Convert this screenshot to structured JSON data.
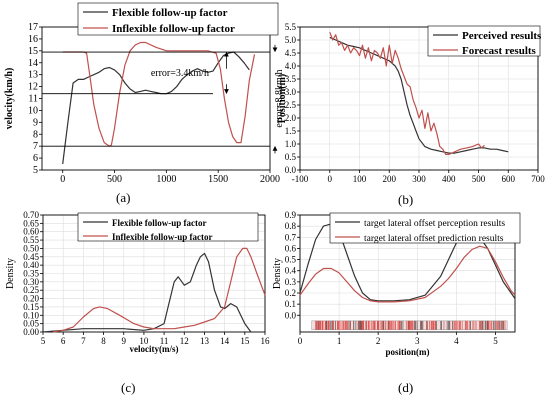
{
  "chart_data": [
    {
      "panel": "(a)",
      "type": "line",
      "ylabel": "velocity(km/h)",
      "xlim": [
        -200,
        2000
      ],
      "ylim": [
        5,
        17
      ],
      "xticks": [
        0,
        500,
        1000,
        1500,
        2000
      ],
      "yticks": [
        5,
        6,
        7,
        8,
        9,
        10,
        11,
        12,
        13,
        14,
        15,
        16,
        17
      ],
      "legend": "top",
      "series": [
        {
          "name": "Flexible follow-up factor",
          "color": "#333333",
          "x": [
            0,
            50,
            100,
            150,
            200,
            250,
            300,
            350,
            400,
            450,
            500,
            550,
            600,
            650,
            700,
            750,
            800,
            850,
            900,
            950,
            1000,
            1050,
            1100,
            1150,
            1200,
            1250,
            1300,
            1350,
            1400,
            1450,
            1500,
            1550,
            1600,
            1650,
            1700,
            1750,
            1800
          ],
          "y": [
            5.5,
            9,
            12.3,
            12.6,
            12.6,
            12.8,
            13.0,
            13.2,
            13.5,
            13.6,
            13.4,
            13.0,
            12.3,
            11.8,
            11.5,
            11.6,
            11.7,
            11.6,
            11.5,
            11.4,
            11.4,
            11.6,
            12.0,
            12.6,
            13.0,
            13.3,
            13.5,
            13.3,
            13.2,
            13.3,
            14.0,
            14.6,
            14.8,
            14.9,
            14.5,
            14.0,
            13.4
          ]
        },
        {
          "name": "Inflexible follow-up factor",
          "color": "#c0504d",
          "x": [
            0,
            100,
            200,
            230,
            260,
            300,
            350,
            400,
            450,
            470,
            500,
            550,
            600,
            650,
            700,
            750,
            800,
            900,
            1000,
            1100,
            1200,
            1300,
            1400,
            1480,
            1520,
            1560,
            1600,
            1640,
            1680,
            1720,
            1760,
            1800,
            1850
          ],
          "y": [
            14.9,
            14.9,
            14.9,
            14.8,
            13.0,
            10.5,
            8.5,
            7.3,
            7.0,
            7.1,
            8.5,
            11.5,
            13.8,
            15.0,
            15.5,
            15.7,
            15.7,
            15.3,
            15.0,
            15.0,
            15.0,
            15.0,
            15.0,
            14.8,
            13.5,
            11.0,
            9.0,
            7.8,
            7.3,
            7.3,
            9.5,
            12.5,
            14.7
          ]
        }
      ],
      "annotations": [
        "error=3.4km/h",
        "error=8.8km/h"
      ]
    },
    {
      "panel": "(b)",
      "type": "line",
      "ylabel": "Position(m)",
      "xlim": [
        -100,
        700
      ],
      "ylim": [
        0,
        5.5
      ],
      "xticks": [
        -100,
        0,
        100,
        200,
        300,
        400,
        500,
        600,
        700
      ],
      "yticks": [
        0.0,
        0.5,
        1.0,
        1.5,
        2.0,
        2.5,
        3.0,
        3.5,
        4.0,
        4.5,
        5.0,
        5.5
      ],
      "legend": "top-right",
      "series": [
        {
          "name": "Perceived results",
          "color": "#333333",
          "x": [
            0,
            10,
            20,
            40,
            60,
            80,
            100,
            120,
            140,
            160,
            180,
            200,
            220,
            230,
            240,
            250,
            260,
            270,
            280,
            290,
            300,
            320,
            340,
            360,
            380,
            400,
            420,
            440,
            460,
            480,
            500,
            520,
            540,
            560,
            580,
            600
          ],
          "y": [
            5.1,
            5.05,
            5.0,
            4.9,
            4.8,
            4.75,
            4.7,
            4.6,
            4.5,
            4.4,
            4.3,
            4.2,
            4.0,
            3.8,
            3.5,
            3.0,
            2.5,
            2.1,
            1.8,
            1.5,
            1.2,
            0.9,
            0.8,
            0.75,
            0.7,
            0.65,
            0.65,
            0.7,
            0.75,
            0.8,
            0.85,
            0.85,
            0.8,
            0.8,
            0.75,
            0.7
          ]
        },
        {
          "name": "Forecast results",
          "color": "#c0504d",
          "x": [
            0,
            10,
            20,
            30,
            40,
            50,
            60,
            70,
            80,
            90,
            100,
            110,
            120,
            130,
            140,
            150,
            160,
            170,
            180,
            190,
            200,
            210,
            220,
            230,
            240,
            250,
            260,
            270,
            280,
            290,
            300,
            310,
            320,
            330,
            340,
            350,
            360,
            370,
            380,
            390,
            400,
            420,
            440,
            460,
            480,
            500,
            510,
            520
          ],
          "y": [
            5.3,
            5.0,
            5.2,
            4.8,
            4.9,
            4.6,
            4.8,
            4.5,
            4.7,
            4.6,
            4.4,
            4.8,
            4.3,
            4.7,
            4.2,
            4.6,
            4.5,
            4.3,
            4.7,
            4.0,
            4.8,
            4.1,
            4.6,
            4.3,
            3.9,
            3.6,
            3.3,
            3.2,
            2.7,
            2.4,
            2.0,
            2.3,
            1.6,
            2.2,
            1.5,
            1.8,
            1.4,
            0.9,
            0.8,
            0.6,
            0.6,
            0.7,
            0.8,
            0.85,
            0.9,
            1.0,
            0.85,
            0.95
          ]
        }
      ]
    },
    {
      "panel": "(c)",
      "type": "line",
      "xlabel": "velocity(m/s)",
      "ylabel": "Density",
      "xlim": [
        5,
        16
      ],
      "ylim": [
        0,
        0.7
      ],
      "xticks": [
        5,
        6,
        7,
        8,
        9,
        10,
        11,
        12,
        13,
        14,
        15,
        16
      ],
      "yticks": [
        0.0,
        0.05,
        0.1,
        0.15,
        0.2,
        0.25,
        0.3,
        0.35,
        0.4,
        0.45,
        0.5,
        0.55,
        0.6,
        0.65,
        0.7
      ],
      "legend": "top",
      "series": [
        {
          "name": "Flexible follow-up factor",
          "color": "#333333",
          "x": [
            5,
            6,
            7,
            8,
            9,
            10,
            10.5,
            11,
            11.2,
            11.5,
            11.7,
            12.0,
            12.3,
            12.6,
            12.8,
            13.0,
            13.2,
            13.5,
            13.8,
            14.0,
            14.3,
            14.6,
            15.0,
            15.3
          ],
          "y": [
            0.0,
            0.01,
            0.02,
            0.02,
            0.02,
            0.01,
            0.02,
            0.05,
            0.15,
            0.3,
            0.33,
            0.28,
            0.3,
            0.4,
            0.45,
            0.47,
            0.42,
            0.25,
            0.15,
            0.14,
            0.17,
            0.15,
            0.05,
            0.0
          ]
        },
        {
          "name": "Inflexible follow-up factor",
          "color": "#c0504d",
          "x": [
            5.5,
            6,
            6.5,
            7,
            7.5,
            7.8,
            8.2,
            8.8,
            9.5,
            10,
            10.5,
            11,
            11.5,
            12,
            12.5,
            13,
            13.5,
            14,
            14.3,
            14.6,
            14.9,
            15.1,
            15.3,
            15.6,
            16
          ],
          "y": [
            0.0,
            0.01,
            0.03,
            0.09,
            0.14,
            0.15,
            0.14,
            0.1,
            0.05,
            0.03,
            0.02,
            0.02,
            0.02,
            0.03,
            0.04,
            0.06,
            0.08,
            0.15,
            0.3,
            0.45,
            0.5,
            0.5,
            0.45,
            0.35,
            0.22
          ]
        }
      ]
    },
    {
      "panel": "(d)",
      "type": "line",
      "xlabel": "position(m)",
      "ylabel": "Density",
      "xlim": [
        0,
        5.5
      ],
      "ylim": [
        -0.15,
        0.9
      ],
      "xticks": [
        0,
        1,
        2,
        3,
        4,
        5
      ],
      "yticks": [
        0.0,
        0.1,
        0.2,
        0.3,
        0.4,
        0.5,
        0.6,
        0.7,
        0.8,
        0.9
      ],
      "legend": "top",
      "series": [
        {
          "name": "target lateral offset perception results",
          "color": "#333333",
          "x": [
            0,
            0.2,
            0.4,
            0.6,
            0.8,
            1.0,
            1.2,
            1.4,
            1.6,
            1.8,
            2.0,
            2.4,
            2.8,
            3.2,
            3.6,
            3.8,
            4.0,
            4.2,
            4.4,
            4.6,
            4.8,
            5.0,
            5.2,
            5.4,
            5.5
          ],
          "y": [
            0.2,
            0.45,
            0.68,
            0.8,
            0.82,
            0.75,
            0.55,
            0.35,
            0.2,
            0.14,
            0.13,
            0.13,
            0.14,
            0.18,
            0.35,
            0.5,
            0.65,
            0.72,
            0.72,
            0.7,
            0.6,
            0.45,
            0.3,
            0.2,
            0.15
          ]
        },
        {
          "name": "target lateral offset prediction results",
          "color": "#c0504d",
          "x": [
            0,
            0.2,
            0.4,
            0.6,
            0.8,
            1.0,
            1.2,
            1.4,
            1.6,
            1.8,
            2.0,
            2.4,
            2.8,
            3.2,
            3.6,
            3.8,
            4.0,
            4.2,
            4.4,
            4.6,
            4.8,
            5.0,
            5.2,
            5.4,
            5.5
          ],
          "y": [
            0.18,
            0.28,
            0.37,
            0.42,
            0.42,
            0.38,
            0.3,
            0.22,
            0.16,
            0.13,
            0.12,
            0.12,
            0.13,
            0.16,
            0.26,
            0.33,
            0.42,
            0.52,
            0.59,
            0.62,
            0.6,
            0.48,
            0.34,
            0.22,
            0.18
          ]
        }
      ]
    }
  ]
}
